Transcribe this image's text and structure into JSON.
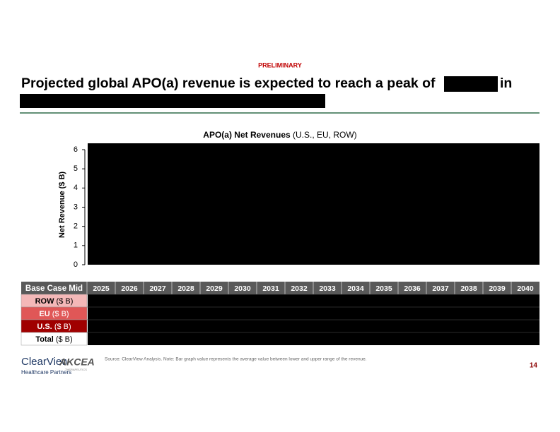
{
  "header": {
    "tag": "PRELIMINARY",
    "headline_start": "Projected global APO(a) revenue is expected to reach a peak of",
    "headline_end": "in"
  },
  "chart_data": {
    "type": "bar",
    "title": "APO(a) Net Revenues",
    "subtitle": "(U.S., EU, ROW)",
    "ylabel": "Net Revenue ($ B)",
    "ylim": [
      0,
      6
    ],
    "yticks": [
      0,
      1,
      2,
      3,
      4,
      5,
      6
    ]
  },
  "table": {
    "corner": "Base Case Mid",
    "columns": [
      "2025",
      "2026",
      "2027",
      "2028",
      "2029",
      "2030",
      "2031",
      "2032",
      "2033",
      "2034",
      "2035",
      "2036",
      "2037",
      "2038",
      "2039",
      "2040"
    ],
    "rows": [
      {
        "label": "ROW",
        "unit": "($ B)"
      },
      {
        "label": "EU",
        "unit": "($ B)"
      },
      {
        "label": "U.S.",
        "unit": "($ B)"
      },
      {
        "label": "Total",
        "unit": "($ B)"
      }
    ]
  },
  "footer": {
    "source": "Source: ClearView Analysis. Note: Bar graph value represents the average value between lower and upper range of the revenue.",
    "page": "14",
    "logo_left": "ClearView",
    "logo_left_sub": "Healthcare Partners",
    "logo_right": "AKCEA",
    "logo_right_sub": "THERAPEUTICS"
  }
}
